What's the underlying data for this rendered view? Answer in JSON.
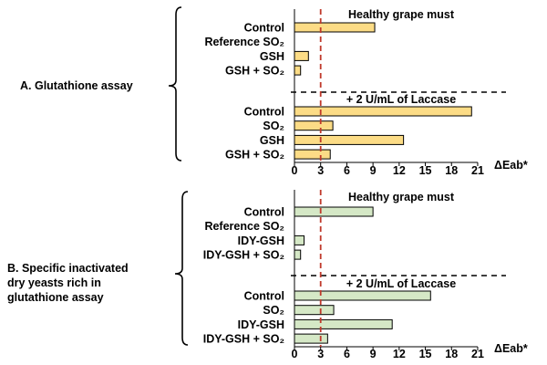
{
  "chart_data": [
    {
      "type": "bar",
      "orientation": "horizontal",
      "panel_label": "A. Glutathione assay",
      "xlim": [
        0,
        21
      ],
      "xticks": [
        0,
        3,
        6,
        9,
        12,
        15,
        18,
        21
      ],
      "xlabel": "ΔEab*",
      "threshold": 3,
      "bar_color": "#fcdc86",
      "groups": [
        {
          "header": "Healthy grape must",
          "categories": [
            "Control",
            "Reference SO₂",
            "GSH",
            "GSH + SO₂"
          ],
          "values": [
            9.2,
            0,
            1.6,
            0.7
          ]
        },
        {
          "header": "+ 2 U/mL of  Laccase",
          "categories": [
            "Control",
            "SO₂",
            "GSH",
            "GSH + SO₂"
          ],
          "values": [
            20.3,
            4.4,
            12.5,
            4.1
          ]
        }
      ]
    },
    {
      "type": "bar",
      "orientation": "horizontal",
      "panel_label": [
        "B.  Specific inactivated",
        "dry yeasts rich in",
        "glutathione assay"
      ],
      "xlim": [
        0,
        21
      ],
      "xticks": [
        0,
        3,
        6,
        9,
        12,
        15,
        18,
        21
      ],
      "xlabel": "ΔEab*",
      "threshold": 3,
      "bar_color": "#d5e8c6",
      "groups": [
        {
          "header": "Healthy grape must",
          "categories": [
            "Control",
            "Reference SO₂",
            "IDY-GSH",
            "IDY-GSH + SO₂"
          ],
          "values": [
            9.0,
            0,
            1.1,
            0.7
          ]
        },
        {
          "header": "+ 2 U/mL of Laccase",
          "categories": [
            "Control",
            "SO₂",
            "IDY-GSH",
            "IDY-GSH + SO₂"
          ],
          "values": [
            15.6,
            4.5,
            11.2,
            3.8
          ]
        }
      ]
    }
  ]
}
